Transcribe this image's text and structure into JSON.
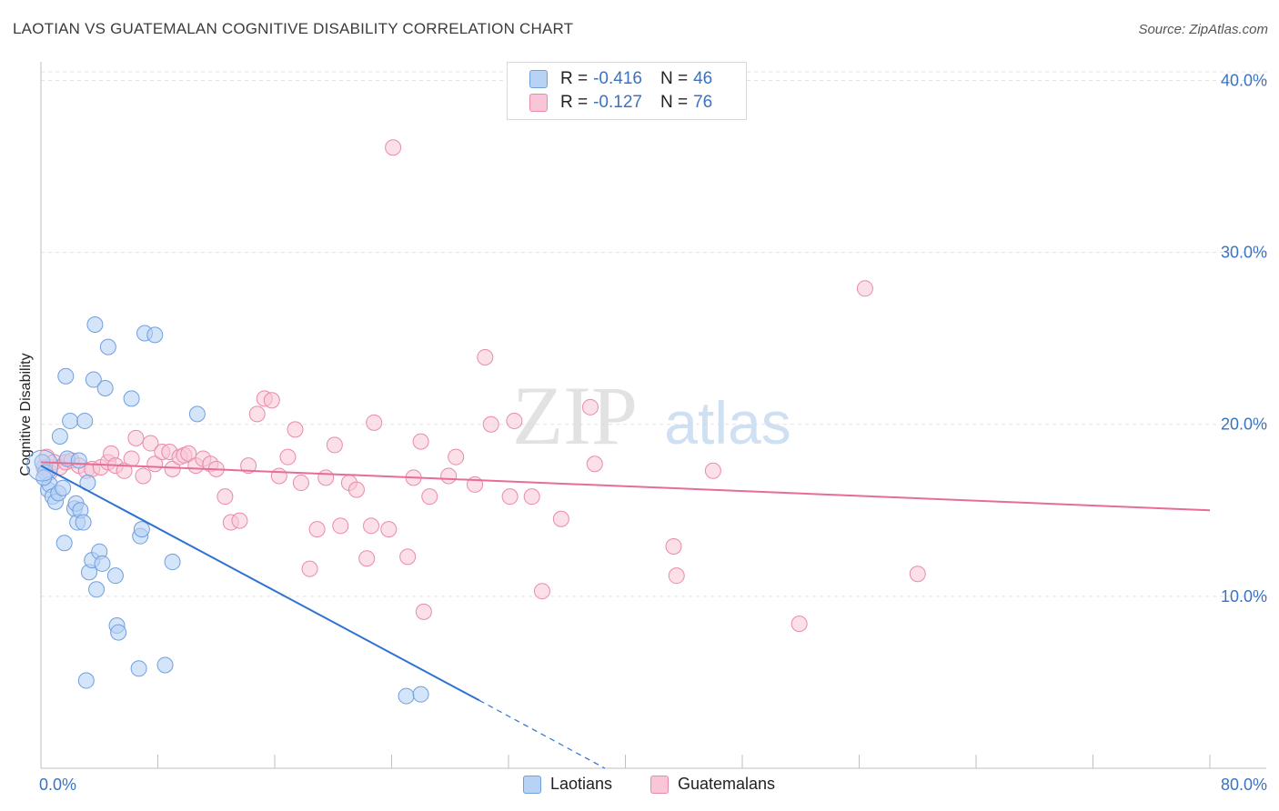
{
  "header": {
    "title": "LAOTIAN VS GUATEMALAN COGNITIVE DISABILITY CORRELATION CHART",
    "source": "Source: ZipAtlas.com"
  },
  "watermark": {
    "zip": "ZIP",
    "atlas": "atlas"
  },
  "legend_top": {
    "rows": [
      {
        "r_label": "R =",
        "r_value": "-0.416",
        "n_label": "N =",
        "n_value": "46"
      },
      {
        "r_label": "R =",
        "r_value": "-0.127",
        "n_label": "N =",
        "n_value": "76"
      }
    ]
  },
  "legend_bottom": {
    "items": [
      {
        "label": "Laotians"
      },
      {
        "label": "Guatemalans"
      }
    ]
  },
  "colors": {
    "laotians_fill": "#b7d2f5",
    "laotians_stroke": "#6f9fde",
    "laotians_line": "#2e72d2",
    "guatemalans_fill": "#f8c6d6",
    "guatemalans_stroke": "#e98aab",
    "guatemalans_line": "#e76c96",
    "axis_text": "#3a72c4",
    "grid": "#e3e3e3"
  },
  "chart_data": {
    "type": "scatter",
    "title": "LAOTIAN VS GUATEMALAN COGNITIVE DISABILITY CORRELATION CHART",
    "xlabel": "",
    "ylabel": "Cognitive Disability",
    "xlim": [
      0,
      80
    ],
    "ylim": [
      0,
      40.5
    ],
    "x_tick_labels": [
      "0.0%",
      "80.0%"
    ],
    "y_ticks": [
      10,
      20,
      30,
      40
    ],
    "y_tick_labels": [
      "10.0%",
      "20.0%",
      "30.0%",
      "40.0%"
    ],
    "grid": true,
    "legend_position": "top-center",
    "series": [
      {
        "name": "Laotians",
        "points": [
          [
            0.1,
            17.8
          ],
          [
            0.3,
            17.2
          ],
          [
            0.5,
            16.2
          ],
          [
            0.6,
            16.5
          ],
          [
            0.8,
            15.8
          ],
          [
            1.0,
            15.5
          ],
          [
            1.2,
            16.0
          ],
          [
            1.3,
            19.3
          ],
          [
            1.5,
            16.3
          ],
          [
            1.6,
            13.1
          ],
          [
            1.7,
            22.8
          ],
          [
            1.8,
            18.0
          ],
          [
            2.0,
            20.2
          ],
          [
            2.3,
            15.1
          ],
          [
            2.4,
            15.4
          ],
          [
            2.5,
            14.3
          ],
          [
            2.6,
            17.9
          ],
          [
            2.7,
            15.0
          ],
          [
            2.9,
            14.3
          ],
          [
            3.0,
            20.2
          ],
          [
            3.1,
            5.1
          ],
          [
            3.2,
            16.6
          ],
          [
            3.3,
            11.4
          ],
          [
            3.5,
            12.1
          ],
          [
            3.6,
            22.6
          ],
          [
            3.7,
            25.8
          ],
          [
            3.8,
            10.4
          ],
          [
            4.0,
            12.6
          ],
          [
            4.2,
            11.9
          ],
          [
            4.4,
            22.1
          ],
          [
            4.6,
            24.5
          ],
          [
            5.1,
            11.2
          ],
          [
            5.2,
            8.3
          ],
          [
            5.3,
            7.9
          ],
          [
            6.2,
            21.5
          ],
          [
            6.7,
            5.8
          ],
          [
            6.8,
            13.5
          ],
          [
            6.9,
            13.9
          ],
          [
            7.1,
            25.3
          ],
          [
            7.8,
            25.2
          ],
          [
            8.5,
            6.0
          ],
          [
            9.0,
            12.0
          ],
          [
            10.7,
            20.6
          ],
          [
            25.0,
            4.2
          ],
          [
            26.0,
            4.3
          ],
          [
            0.2,
            16.9
          ]
        ],
        "trend": {
          "x": [
            0,
            30
          ],
          "y": [
            17.6,
            3.95
          ]
        },
        "trend_dashed": {
          "x": [
            30,
            38.6
          ],
          "y": [
            3.95,
            0
          ]
        }
      },
      {
        "name": "Guatemalans",
        "points": [
          [
            0.2,
            17.5
          ],
          [
            0.4,
            18.1
          ],
          [
            0.6,
            17.2
          ],
          [
            0.9,
            17.8
          ],
          [
            1.3,
            17.5
          ],
          [
            1.7,
            17.8
          ],
          [
            2.1,
            17.9
          ],
          [
            2.6,
            17.6
          ],
          [
            3.1,
            17.3
          ],
          [
            3.5,
            17.4
          ],
          [
            4.1,
            17.5
          ],
          [
            4.6,
            17.8
          ],
          [
            4.8,
            18.3
          ],
          [
            5.1,
            17.6
          ],
          [
            5.7,
            17.3
          ],
          [
            6.2,
            18.0
          ],
          [
            6.5,
            19.2
          ],
          [
            7.0,
            17.0
          ],
          [
            7.5,
            18.9
          ],
          [
            7.8,
            17.7
          ],
          [
            8.3,
            18.4
          ],
          [
            8.8,
            18.4
          ],
          [
            9.0,
            17.4
          ],
          [
            9.5,
            18.1
          ],
          [
            9.8,
            18.2
          ],
          [
            10.1,
            18.3
          ],
          [
            10.6,
            17.6
          ],
          [
            11.1,
            18.0
          ],
          [
            11.6,
            17.7
          ],
          [
            12.0,
            17.4
          ],
          [
            12.6,
            15.8
          ],
          [
            13.0,
            14.3
          ],
          [
            13.6,
            14.4
          ],
          [
            14.2,
            17.6
          ],
          [
            14.8,
            20.6
          ],
          [
            15.3,
            21.5
          ],
          [
            15.8,
            21.4
          ],
          [
            16.3,
            17.0
          ],
          [
            16.9,
            18.1
          ],
          [
            17.4,
            19.7
          ],
          [
            17.8,
            16.6
          ],
          [
            18.4,
            11.6
          ],
          [
            18.9,
            13.9
          ],
          [
            19.5,
            16.9
          ],
          [
            20.1,
            18.8
          ],
          [
            20.5,
            14.1
          ],
          [
            21.1,
            16.6
          ],
          [
            21.6,
            16.2
          ],
          [
            22.3,
            12.2
          ],
          [
            22.6,
            14.1
          ],
          [
            22.8,
            20.1
          ],
          [
            23.8,
            13.9
          ],
          [
            24.1,
            36.1
          ],
          [
            25.1,
            12.3
          ],
          [
            25.5,
            16.9
          ],
          [
            26.0,
            19.0
          ],
          [
            26.2,
            9.1
          ],
          [
            26.6,
            15.8
          ],
          [
            27.9,
            17.0
          ],
          [
            28.4,
            18.1
          ],
          [
            29.7,
            16.5
          ],
          [
            30.4,
            23.9
          ],
          [
            30.8,
            20.0
          ],
          [
            32.1,
            15.8
          ],
          [
            32.4,
            20.2
          ],
          [
            33.6,
            15.8
          ],
          [
            34.3,
            10.3
          ],
          [
            35.6,
            14.5
          ],
          [
            37.6,
            21.0
          ],
          [
            37.9,
            17.7
          ],
          [
            43.3,
            12.9
          ],
          [
            43.5,
            11.2
          ],
          [
            46.0,
            17.3
          ],
          [
            51.9,
            8.4
          ],
          [
            56.4,
            27.9
          ],
          [
            60.0,
            11.3
          ]
        ],
        "trend": {
          "x": [
            0,
            80
          ],
          "y": [
            17.8,
            15.0
          ]
        }
      }
    ]
  }
}
